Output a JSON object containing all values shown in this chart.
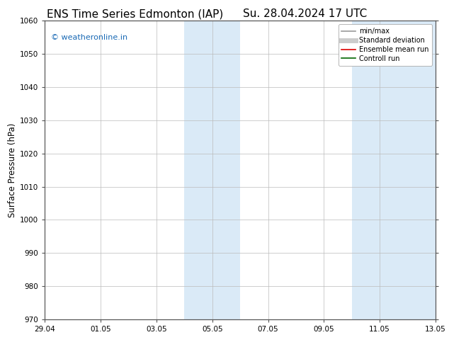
{
  "title_left": "ENS Time Series Edmonton (IAP)",
  "title_right": "Su. 28.04.2024 17 UTC",
  "ylabel": "Surface Pressure (hPa)",
  "ylim": [
    970,
    1060
  ],
  "yticks": [
    970,
    980,
    990,
    1000,
    1010,
    1020,
    1030,
    1040,
    1050,
    1060
  ],
  "xtick_labels": [
    "29.04",
    "01.05",
    "03.05",
    "05.05",
    "07.05",
    "09.05",
    "11.05",
    "13.05"
  ],
  "xtick_positions": [
    0,
    2,
    4,
    6,
    8,
    10,
    12,
    14
  ],
  "xlim": [
    0,
    14
  ],
  "shaded_regions": [
    {
      "start": 5,
      "end": 7
    },
    {
      "start": 11,
      "end": 14
    }
  ],
  "shaded_color": "#daeaf7",
  "watermark_text": "© weatheronline.in",
  "watermark_color": "#1a6ab5",
  "legend_entries": [
    {
      "label": "min/max",
      "color": "#999999",
      "lw": 1.2
    },
    {
      "label": "Standard deviation",
      "color": "#cccccc",
      "lw": 5
    },
    {
      "label": "Ensemble mean run",
      "color": "#dd0000",
      "lw": 1.2
    },
    {
      "label": "Controll run",
      "color": "#006600",
      "lw": 1.2
    }
  ],
  "bg_color": "#ffffff",
  "grid_color": "#bbbbbb",
  "title_fontsize": 11,
  "tick_fontsize": 7.5,
  "ylabel_fontsize": 8.5,
  "watermark_fontsize": 8,
  "legend_fontsize": 7
}
